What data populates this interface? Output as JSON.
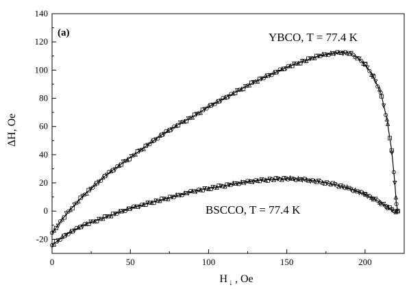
{
  "chart_data": {
    "type": "scatter",
    "panel_label": "(a)",
    "xlabel_main": "H",
    "xlabel_sub": "↓",
    "xlabel_rest": ", Oe",
    "ylabel": "ΔH, Oe",
    "xlim": [
      0,
      225
    ],
    "ylim": [
      -30,
      140
    ],
    "xticks": [
      0,
      50,
      100,
      150,
      200
    ],
    "yticks": [
      -20,
      0,
      20,
      40,
      60,
      80,
      100,
      120,
      140
    ],
    "grid": false,
    "annotations": [
      "YBCO, T = 77.4 K",
      "BSCCO, T = 77.4 K"
    ],
    "series": [
      {
        "name": "YBCO, T = 77.4 K",
        "color": "#000000",
        "x": [
          0,
          5,
          10,
          15,
          20,
          25,
          30,
          35,
          40,
          50,
          60,
          70,
          80,
          90,
          100,
          110,
          120,
          130,
          140,
          150,
          160,
          170,
          180,
          185,
          190,
          195,
          200,
          205,
          210,
          214,
          217,
          219,
          220,
          221
        ],
        "y": [
          -16,
          -8,
          -1,
          5,
          11,
          16,
          21,
          26,
          30,
          38,
          46,
          54,
          61,
          67,
          74,
          80,
          86,
          92,
          97,
          102,
          106,
          110,
          112,
          112.5,
          112,
          109,
          104,
          96,
          84,
          65,
          43,
          20,
          5,
          0
        ]
      },
      {
        "name": "BSCCO, T = 77.4 K",
        "color": "#000000",
        "x": [
          0,
          5,
          10,
          15,
          20,
          25,
          30,
          40,
          50,
          60,
          70,
          80,
          90,
          100,
          110,
          120,
          130,
          140,
          150,
          160,
          170,
          180,
          190,
          200,
          205,
          210,
          214,
          217,
          219,
          220,
          221
        ],
        "y": [
          -24,
          -20,
          -16,
          -13,
          -10,
          -8,
          -6,
          -2,
          2,
          5,
          8,
          11,
          14,
          16,
          18,
          20,
          21.5,
          22.5,
          23,
          22.5,
          21,
          19,
          16,
          12,
          9,
          6,
          3,
          1,
          0,
          0,
          0
        ]
      }
    ]
  }
}
